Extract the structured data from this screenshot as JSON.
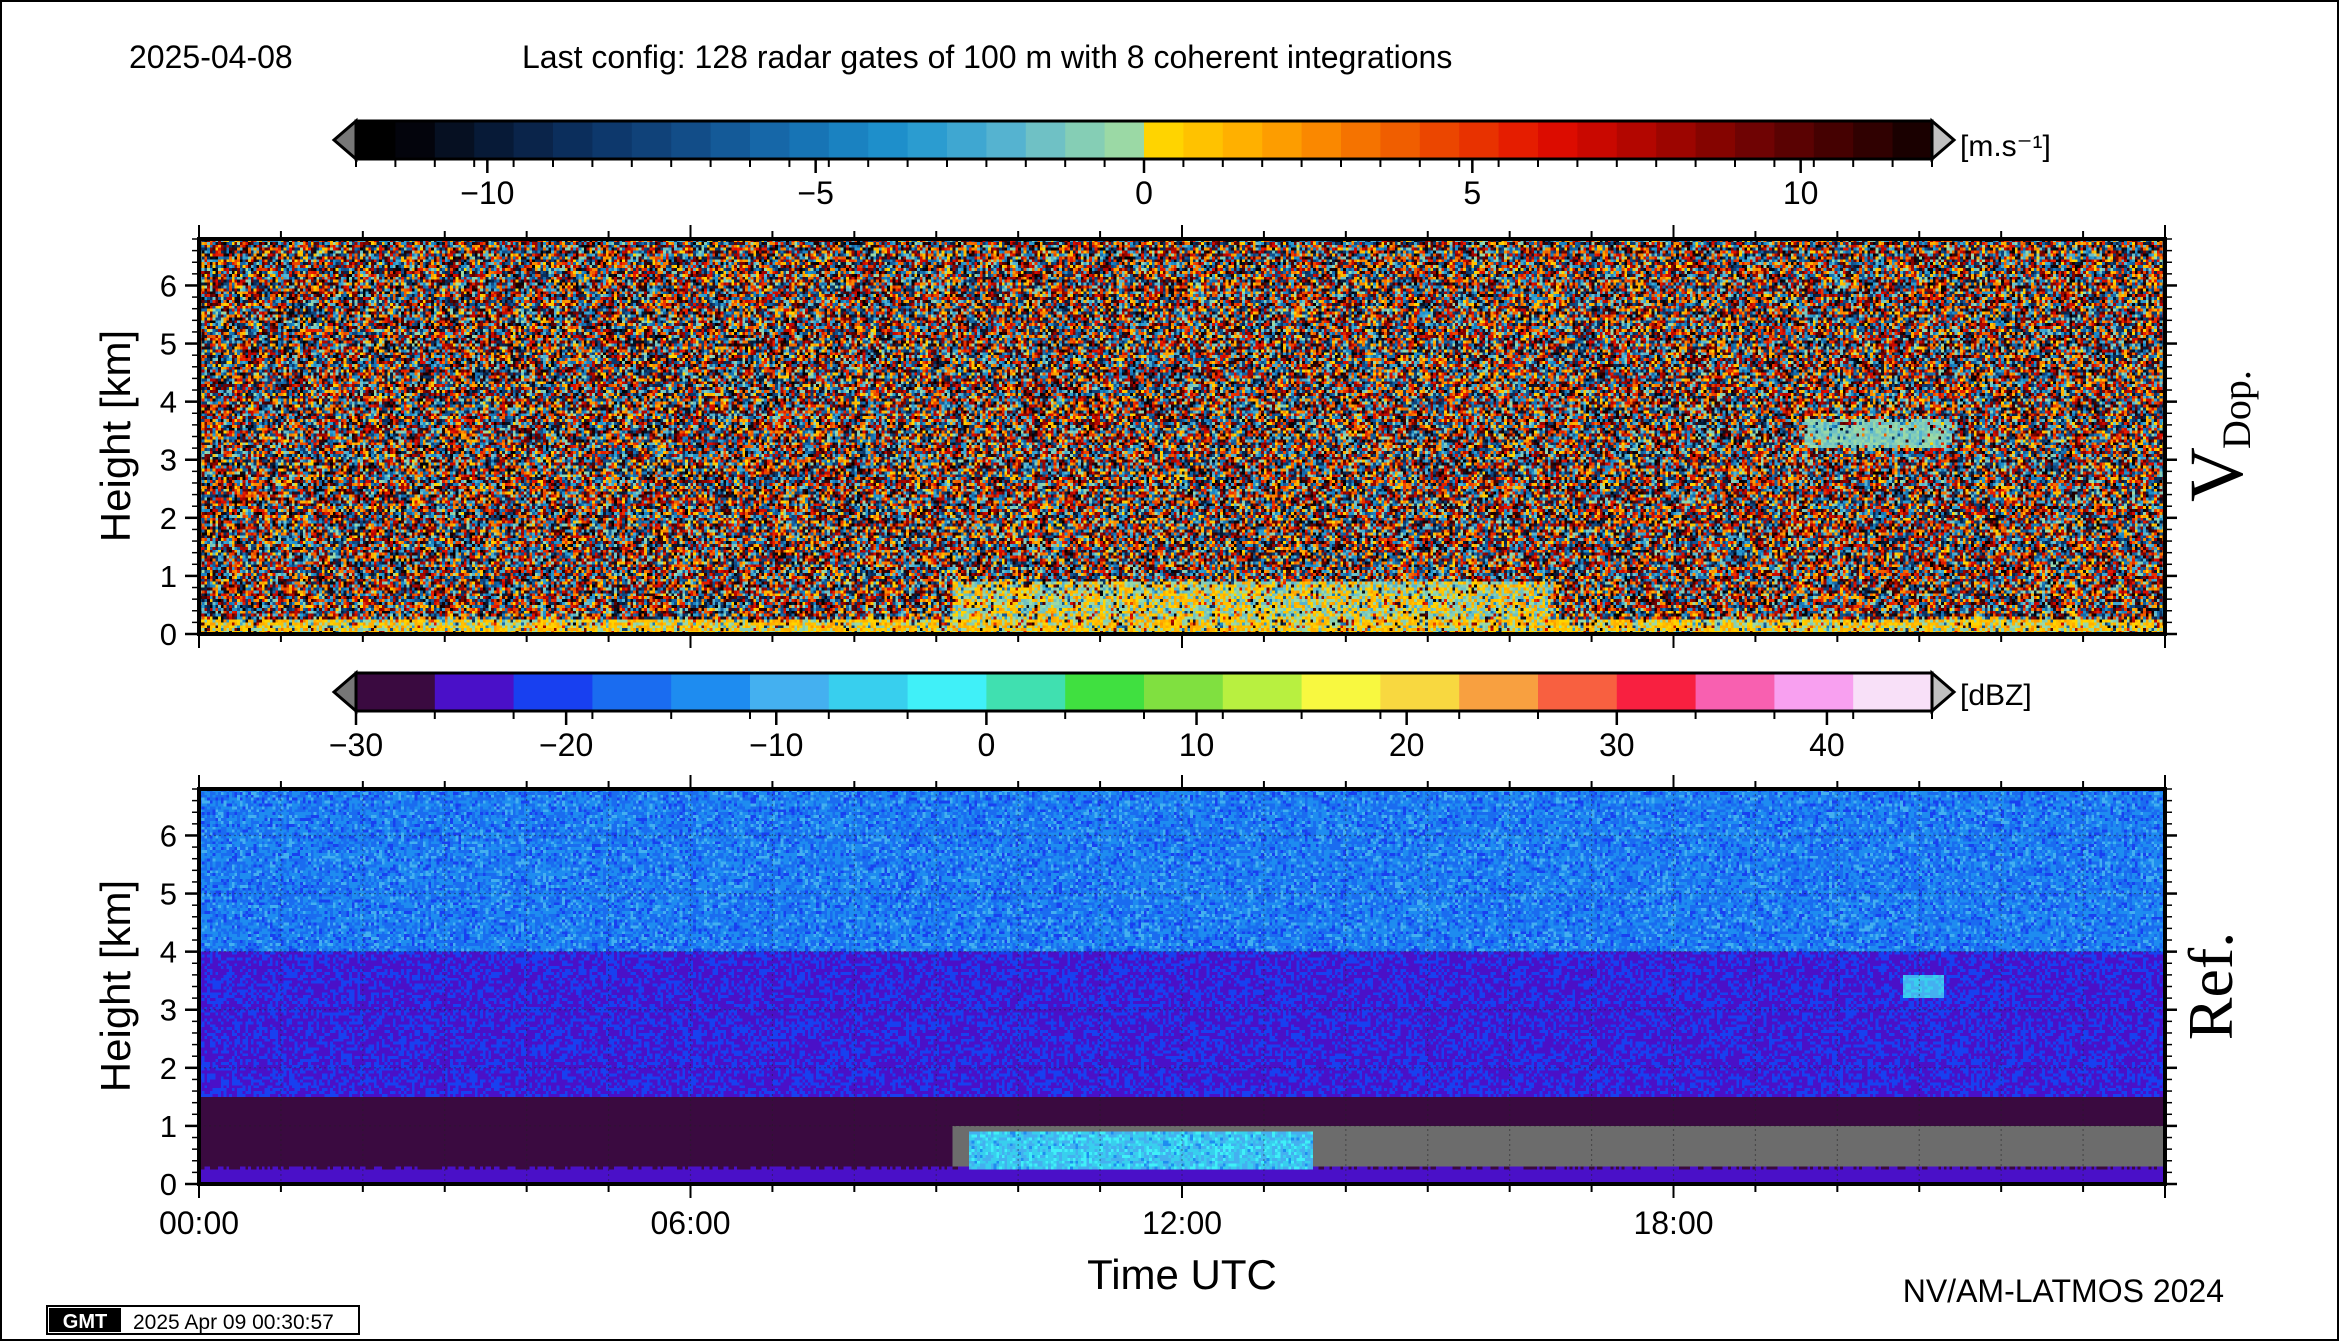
{
  "header": {
    "date": "2025-04-08",
    "config": "Last config: 128 radar gates of 100 m with 8 coherent integrations"
  },
  "footer": {
    "credit": "NV/AM-LATMOS 2024",
    "gmt_logo": "GMT",
    "timestamp": "2025 Apr 09 00:30:57"
  },
  "colorbars": {
    "doppler": {
      "unit": "[m.s⁻¹]",
      "range": [
        -12,
        12
      ],
      "ticks": [
        -10,
        -5,
        0,
        5,
        10
      ],
      "tick_labels": [
        "−10",
        "−5",
        "0",
        "5",
        "10"
      ],
      "below_color": "#777777",
      "above_color": "#c0c0c0",
      "colors": [
        "#000000",
        "#03040c",
        "#061022",
        "#071a37",
        "#0a244a",
        "#0b2e5c",
        "#0d386c",
        "#104279",
        "#124d88",
        "#145a98",
        "#1667a8",
        "#1774b5",
        "#1a82c1",
        "#1e8fcb",
        "#2b9cd0",
        "#3fa7d1",
        "#55b3d0",
        "#6fc1c5",
        "#85ceb5",
        "#9bd9a5",
        "#ffd400",
        "#ffc200",
        "#ffb000",
        "#fd9d00",
        "#fa8800",
        "#f57300",
        "#f05e00",
        "#eb4600",
        "#e83200",
        "#e51d00",
        "#dc0c00",
        "#c90800",
        "#b30600",
        "#9c0500",
        "#850400",
        "#6f0303",
        "#5a0202",
        "#450101",
        "#300101",
        "#1a0000"
      ]
    },
    "reflectivity": {
      "unit": "[dBZ]",
      "range": [
        -30,
        45
      ],
      "ticks": [
        -30,
        -20,
        -10,
        0,
        10,
        20,
        30,
        40
      ],
      "tick_labels": [
        "−30",
        "−20",
        "−10",
        "0",
        "10",
        "20",
        "30",
        "40"
      ],
      "below_color": "#777777",
      "above_color": "#c0c0c0",
      "colors": [
        "#3a0a40",
        "#4a10c8",
        "#1840f0",
        "#1a6cf0",
        "#1e8cf0",
        "#44b0f0",
        "#38cfee",
        "#40f0f8",
        "#40e0b0",
        "#40e040",
        "#80e040",
        "#b8f040",
        "#f8f840",
        "#f8d840",
        "#f8a040",
        "#f86040",
        "#f82040",
        "#f860b0",
        "#f8a0f0",
        "#f8e0f8"
      ]
    }
  },
  "chart_data": [
    {
      "type": "heatmap",
      "panel_label": "V",
      "panel_label_sub": "Dop.",
      "ylabel": "Height [km]",
      "xlabel": "",
      "xlim": [
        0,
        24
      ],
      "ylim": [
        0,
        6.8
      ],
      "y_ticks": [
        0,
        1,
        2,
        3,
        4,
        5,
        6
      ],
      "x_ticks_major": [
        "00:00",
        "06:00",
        "12:00",
        "18:00"
      ],
      "x_tick_labels_shown": false,
      "value_units": "m/s",
      "color_range": [
        -12,
        12
      ],
      "grid": false,
      "features": [
        {
          "name": "surface layer",
          "hours": [
            0,
            24
          ],
          "height_km": [
            0,
            0.25
          ],
          "value_range": [
            -1,
            2
          ]
        },
        {
          "name": "boundary layer echo",
          "hours": [
            9.2,
            16.5
          ],
          "height_km": [
            0.25,
            0.9
          ],
          "value_range": [
            -2,
            2
          ]
        },
        {
          "name": "cloud echo",
          "hours": [
            19.6,
            21.4
          ],
          "height_km": [
            3.2,
            3.7
          ],
          "value_range": [
            -2,
            0
          ]
        }
      ]
    },
    {
      "type": "heatmap",
      "panel_label": "Ref.",
      "ylabel": "Height [km]",
      "xlabel": "Time UTC",
      "xlim": [
        0,
        24
      ],
      "ylim": [
        0,
        6.8
      ],
      "y_ticks": [
        0,
        1,
        2,
        3,
        4,
        5,
        6
      ],
      "x_ticks_major": [
        "00:00",
        "06:00",
        "12:00",
        "18:00"
      ],
      "x_tick_labels_shown": true,
      "value_units": "dBZ",
      "color_range": [
        -30,
        45
      ],
      "grid": true,
      "features": [
        {
          "name": "upper background",
          "height_km": [
            4,
            6.8
          ],
          "value_range": [
            -20,
            -10
          ]
        },
        {
          "name": "mid background",
          "height_km": [
            1.5,
            4
          ],
          "value_range": [
            -26,
            -20
          ]
        },
        {
          "name": "low background",
          "height_km": [
            0.3,
            1.5
          ],
          "value_range": [
            -30,
            -27
          ]
        },
        {
          "name": "below-range band",
          "hours": [
            9.2,
            24
          ],
          "height_km": [
            0.3,
            1.0
          ],
          "value": "below"
        },
        {
          "name": "surface clutter line",
          "hours": [
            0,
            24
          ],
          "height_km": [
            0.25,
            0.3
          ],
          "value_range": [
            -28,
            -24
          ]
        },
        {
          "name": "boundary layer echo",
          "hours": [
            9.4,
            13.6
          ],
          "height_km": [
            0.25,
            0.9
          ],
          "value_range": [
            -12,
            -2
          ]
        },
        {
          "name": "cloud echo",
          "hours": [
            20.8,
            21.3
          ],
          "height_km": [
            3.2,
            3.6
          ],
          "value_range": [
            -10,
            -5
          ]
        }
      ]
    }
  ]
}
